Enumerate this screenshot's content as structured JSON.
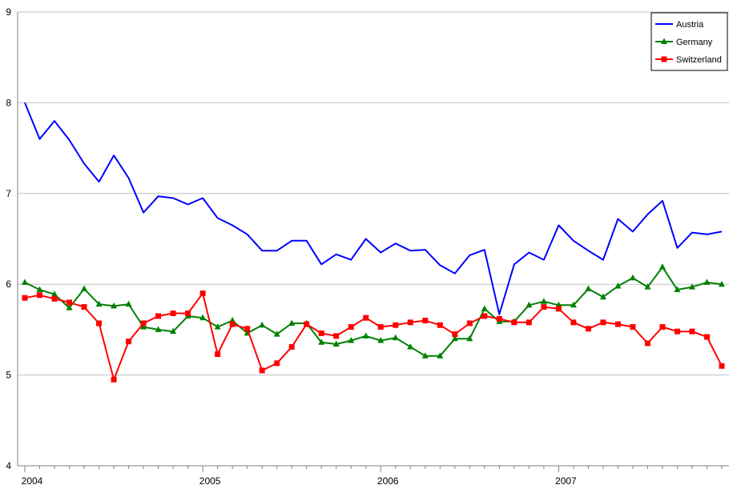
{
  "chart_data": {
    "type": "line",
    "title": "",
    "xlabel": "",
    "ylabel": "",
    "ylim": [
      4,
      9
    ],
    "yticks": [
      "4",
      "5",
      "6",
      "7",
      "8",
      "9"
    ],
    "x_year_labels": [
      "2004",
      "2005",
      "2006",
      "2007"
    ],
    "grid": "horizontal",
    "legend_position": "top-right",
    "series": [
      {
        "name": "Austria",
        "color": "#0000ff",
        "marker": "none",
        "values": [
          8.0,
          7.6,
          7.8,
          7.59,
          7.33,
          7.13,
          7.42,
          7.17,
          6.79,
          6.97,
          6.95,
          6.88,
          6.95,
          6.73,
          6.65,
          6.55,
          6.37,
          6.37,
          6.48,
          6.48,
          6.22,
          6.33,
          6.27,
          6.5,
          6.35,
          6.45,
          6.37,
          6.38,
          6.21,
          6.12,
          6.32,
          6.38,
          5.67,
          6.22,
          6.35,
          6.27,
          6.65,
          6.48,
          6.37,
          6.27,
          6.72,
          6.58,
          6.77,
          6.92,
          6.4,
          6.57,
          6.55,
          6.58
        ]
      },
      {
        "name": "Germany",
        "color": "#008000",
        "marker": "triangle",
        "values": [
          6.02,
          5.94,
          5.89,
          5.74,
          5.95,
          5.78,
          5.76,
          5.78,
          5.53,
          5.5,
          5.48,
          5.65,
          5.63,
          5.53,
          5.6,
          5.46,
          5.55,
          5.45,
          5.57,
          5.57,
          5.36,
          5.34,
          5.38,
          5.43,
          5.38,
          5.41,
          5.31,
          5.21,
          5.21,
          5.4,
          5.4,
          5.73,
          5.59,
          5.59,
          5.77,
          5.81,
          5.77,
          5.77,
          5.95,
          5.86,
          5.98,
          6.07,
          5.97,
          6.19,
          5.94,
          5.97,
          6.02,
          6.0
        ]
      },
      {
        "name": "Switzerland",
        "color": "#ff0000",
        "marker": "square",
        "values": [
          5.85,
          5.88,
          5.84,
          5.8,
          5.75,
          5.57,
          4.95,
          5.37,
          5.57,
          5.65,
          5.68,
          5.68,
          5.9,
          5.23,
          5.56,
          5.51,
          5.05,
          5.13,
          5.31,
          5.56,
          5.46,
          5.43,
          5.53,
          5.63,
          5.53,
          5.55,
          5.58,
          5.6,
          5.55,
          5.45,
          5.57,
          5.65,
          5.62,
          5.58,
          5.58,
          5.75,
          5.73,
          5.58,
          5.51,
          5.58,
          5.56,
          5.53,
          5.35,
          5.53,
          5.48,
          5.48,
          5.42,
          5.1
        ]
      }
    ]
  }
}
